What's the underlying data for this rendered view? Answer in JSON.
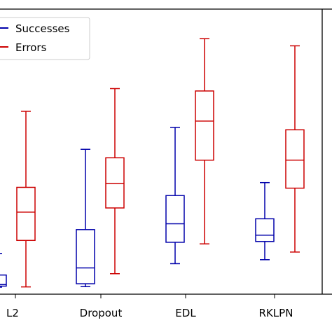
{
  "chart_data": {
    "type": "boxplot",
    "title": "",
    "xlabel": "",
    "ylabel": "",
    "categories": [
      "L2",
      "Dropout",
      "EDL",
      "RKLPN"
    ],
    "ylim": [
      0,
      100
    ],
    "grid": false,
    "legend_position": "top-left",
    "series": [
      {
        "name": "Successes",
        "color": "#0000aa",
        "boxes": [
          {
            "whislo": 0.0,
            "q1": 0.4,
            "med": 1.0,
            "q3": 4.6,
            "whishi": 12.8
          },
          {
            "whislo": 0.2,
            "q1": 1.3,
            "med": 7.3,
            "q3": 21.8,
            "whishi": 52.2
          },
          {
            "whislo": 8.9,
            "q1": 17.0,
            "med": 24.0,
            "q3": 34.7,
            "whishi": 60.5
          },
          {
            "whislo": 10.4,
            "q1": 17.3,
            "med": 19.7,
            "q3": 25.9,
            "whishi": 39.6
          }
        ]
      },
      {
        "name": "Errors",
        "color": "#cc0000",
        "boxes": [
          {
            "whislo": 0.1,
            "q1": 17.7,
            "med": 28.4,
            "q3": 37.8,
            "whishi": 66.6
          },
          {
            "whislo": 5.1,
            "q1": 30.0,
            "med": 39.3,
            "q3": 49.0,
            "whishi": 75.2
          },
          {
            "whislo": 16.4,
            "q1": 48.1,
            "med": 62.9,
            "q3": 74.3,
            "whishi": 94.1
          },
          {
            "whislo": 13.3,
            "q1": 37.5,
            "med": 48.1,
            "q3": 59.6,
            "whishi": 91.4
          }
        ]
      }
    ]
  }
}
